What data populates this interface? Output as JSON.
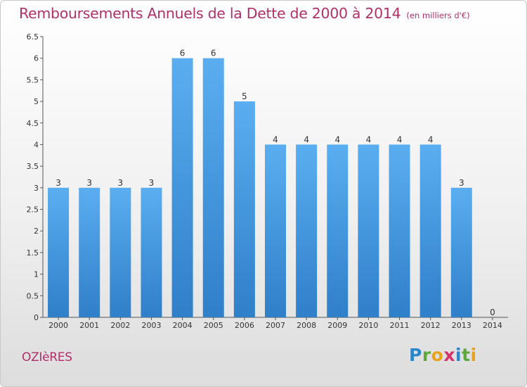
{
  "chart_data": {
    "type": "bar",
    "title": "Remboursements Annuels de la Dette de 2000 à 2014",
    "subtitle": "(en milliers d'€)",
    "categories": [
      "2000",
      "2001",
      "2002",
      "2003",
      "2004",
      "2005",
      "2006",
      "2007",
      "2008",
      "2009",
      "2010",
      "2011",
      "2012",
      "2013",
      "2014"
    ],
    "values": [
      3,
      3,
      3,
      3,
      6,
      6,
      5,
      4,
      4,
      4,
      4,
      4,
      4,
      3,
      0
    ],
    "data_labels": [
      "3",
      "3",
      "3",
      "3",
      "6",
      "6",
      "5",
      "4",
      "4",
      "4",
      "4",
      "4",
      "4",
      "3",
      "0"
    ],
    "ylim": [
      0,
      6.5
    ],
    "yticks": [
      "0",
      "0.5",
      "1",
      "1.5",
      "2",
      "2.5",
      "3",
      "3.5",
      "4",
      "4.5",
      "5",
      "5.5",
      "6",
      "6.5"
    ],
    "grid": false,
    "bar_color": "#3a8fd8"
  },
  "footer": {
    "town": "OZIèRES",
    "logo_parts": [
      "P",
      "r",
      "o",
      "x",
      "i",
      "t",
      "i"
    ]
  }
}
